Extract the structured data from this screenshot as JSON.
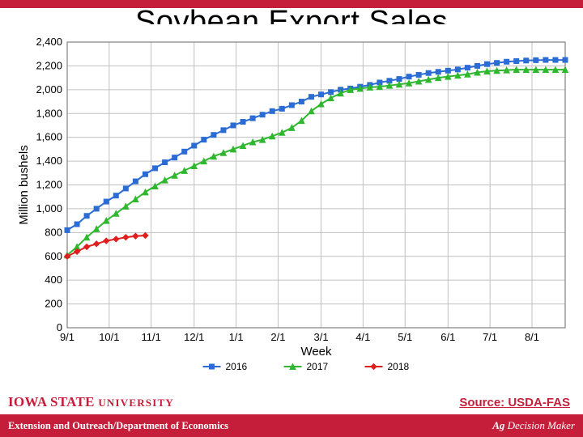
{
  "title": "Soybean Export Sales",
  "source_text": "Source: USDA-FAS",
  "footer_left": "Extension and Outreach/Department of Economics",
  "footer_right_a": "Ag",
  "footer_right_b": " Decision Maker",
  "isu_a": "IOWA STATE ",
  "isu_b": "UNIVERSITY",
  "header_bar_color": "#c41e3a",
  "footer_bar_color": "#c41e3a",
  "source_color": "#c41e3a",
  "isu_color": "#c41e3a",
  "chart": {
    "type": "line",
    "background_color": "#ffffff",
    "plot_border_color": "#808080",
    "grid_color": "#c0c0c0",
    "axis_text_color": "#000000",
    "axis_label_fontsize": 15,
    "tick_fontsize": 13,
    "y_axis": {
      "label": "Million bushels",
      "min": 0,
      "max": 2400,
      "tick_step": 200,
      "ticks": [
        0,
        200,
        400,
        600,
        800,
        1000,
        1200,
        1400,
        1600,
        1800,
        2000,
        2200,
        2400
      ]
    },
    "x_axis": {
      "label": "Week",
      "tick_labels": [
        "9/1",
        "10/1",
        "11/1",
        "12/1",
        "1/1",
        "2/1",
        "3/1",
        "4/1",
        "5/1",
        "6/1",
        "7/1",
        "8/1"
      ],
      "n_points": 52,
      "tick_positions_idx": [
        0,
        4.3,
        8.6,
        13,
        17.3,
        21.6,
        26,
        30.3,
        34.6,
        39,
        43.3,
        47.6
      ]
    },
    "series": [
      {
        "name": "2016",
        "color": "#2b6cd4",
        "marker": "square",
        "marker_size": 6,
        "line_width": 2,
        "data": [
          820,
          870,
          940,
          1000,
          1060,
          1110,
          1170,
          1230,
          1290,
          1340,
          1390,
          1430,
          1480,
          1530,
          1580,
          1620,
          1660,
          1700,
          1730,
          1760,
          1790,
          1820,
          1840,
          1870,
          1900,
          1940,
          1960,
          1980,
          2000,
          2010,
          2025,
          2040,
          2060,
          2075,
          2090,
          2110,
          2125,
          2140,
          2150,
          2160,
          2170,
          2185,
          2200,
          2215,
          2225,
          2235,
          2240,
          2245,
          2248,
          2250,
          2250,
          2250
        ]
      },
      {
        "name": "2017",
        "color": "#2fb82f",
        "marker": "triangle",
        "marker_size": 7,
        "line_width": 2,
        "data": [
          610,
          680,
          760,
          830,
          900,
          960,
          1020,
          1080,
          1140,
          1190,
          1240,
          1280,
          1320,
          1360,
          1400,
          1440,
          1470,
          1500,
          1530,
          1560,
          1580,
          1610,
          1640,
          1680,
          1740,
          1820,
          1880,
          1930,
          1970,
          2000,
          2010,
          2020,
          2025,
          2035,
          2045,
          2055,
          2070,
          2085,
          2100,
          2110,
          2120,
          2130,
          2145,
          2155,
          2160,
          2165,
          2168,
          2168,
          2168,
          2168,
          2168,
          2168
        ]
      },
      {
        "name": "2018",
        "color": "#e01e1e",
        "marker": "diamond",
        "marker_size": 7,
        "line_width": 2,
        "data": [
          600,
          640,
          680,
          705,
          730,
          745,
          760,
          770,
          775
        ]
      }
    ],
    "legend": {
      "position": "bottom-center",
      "fontsize": 12
    }
  }
}
